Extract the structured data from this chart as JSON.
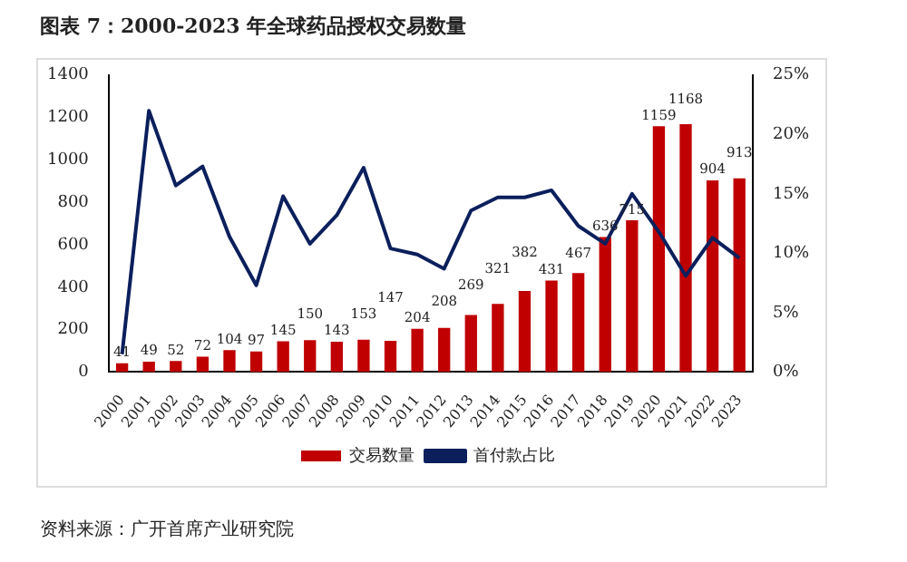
{
  "chart_data": {
    "type": "bar",
    "title": "图表 7：2000-2023 年全球药品授权交易数量",
    "categories": [
      "2000",
      "2001",
      "2002",
      "2003",
      "2004",
      "2005",
      "2006",
      "2007",
      "2008",
      "2009",
      "2010",
      "2011",
      "2012",
      "2013",
      "2014",
      "2015",
      "2016",
      "2017",
      "2018",
      "2019",
      "2020",
      "2021",
      "2022",
      "2023"
    ],
    "series": [
      {
        "name": "交易数量",
        "color": "#c00000",
        "values": [
          41,
          49,
          52,
          72,
          104,
          97,
          145,
          150,
          143,
          153,
          147,
          204,
          208,
          269,
          321,
          382,
          431,
          467,
          636,
          715,
          1159,
          1168,
          904,
          913
        ],
        "value_labels": [
          "41",
          "49",
          "52",
          "72",
          "104",
          "97",
          "145",
          "150",
          "143",
          "153",
          "147",
          "204",
          "208",
          "269",
          "321",
          "382",
          "431",
          "467",
          "636",
          "715",
          "1159",
          "1168",
          "904",
          "913"
        ]
      },
      {
        "name": "首付款占比",
        "type": "line",
        "axis": "y2",
        "color": "#0b1f5c",
        "values": [
          1.5,
          22.0,
          15.7,
          17.3,
          11.4,
          7.3,
          14.8,
          10.8,
          13.2,
          17.2,
          10.4,
          9.9,
          8.7,
          13.6,
          14.7,
          14.7,
          15.3,
          12.3,
          10.8,
          15.0,
          11.8,
          8.1,
          11.3,
          9.6
        ]
      }
    ],
    "ylim": [
      0,
      1400
    ],
    "yticks": [
      0,
      200,
      400,
      600,
      800,
      1000,
      1200,
      1400
    ],
    "y2lim": [
      0,
      25
    ],
    "y2ticks": [
      {
        "value": 0,
        "label": "0%"
      },
      {
        "value": 5,
        "label": "5%"
      },
      {
        "value": 10,
        "label": "10%"
      },
      {
        "value": 15,
        "label": "15%"
      },
      {
        "value": 20,
        "label": "20%"
      },
      {
        "value": 25,
        "label": "25%"
      }
    ],
    "legend": "bottom",
    "grid": false,
    "marker": "none",
    "annotations": [
      "资料来源：广开首席产业研究院"
    ]
  }
}
